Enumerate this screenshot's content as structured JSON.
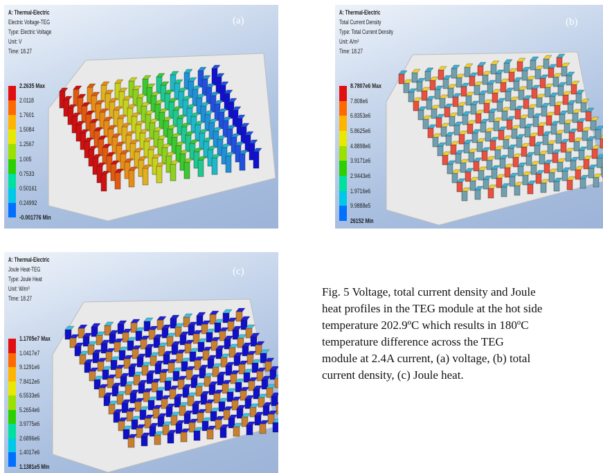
{
  "panels": [
    {
      "id": "a",
      "tag": "(a)",
      "system": "A: Thermal-Electric",
      "result": "Electric Voltage-TEG",
      "type": "Type: Electric Voltage",
      "unit": "Unit: V",
      "time": "Time: 18.27",
      "legend": [
        "2.2635 Max",
        "2.0118",
        "1.7601",
        "1.5084",
        "1.2567",
        "1.005",
        "0.7533",
        "0.50161",
        "0.24992",
        "-0.001776 Min"
      ],
      "legend_colors": [
        "#e01010",
        "#ff6a00",
        "#ffb400",
        "#e8e800",
        "#9ae000",
        "#2cd000",
        "#00e0a0",
        "#00c8e8",
        "#0070ff",
        "#0010e0"
      ]
    },
    {
      "id": "b",
      "tag": "(b)",
      "system": "A: Thermal-Electric",
      "result": "Total Current Density",
      "type": "Type: Total Current Density",
      "unit": "Unit: A/m²",
      "time": "Time: 18.27",
      "legend": [
        "8.7807e6 Max",
        "7.808e6",
        "6.8353e6",
        "5.8625e6",
        "4.8898e6",
        "3.9171e6",
        "2.9443e6",
        "1.9716e6",
        "9.9888e5",
        "26152 Min"
      ],
      "legend_colors": [
        "#e01010",
        "#ff6a00",
        "#ffb400",
        "#e8e800",
        "#9ae000",
        "#2cd000",
        "#00e0a0",
        "#00c8e8",
        "#0070ff",
        "#0010e0"
      ]
    },
    {
      "id": "c",
      "tag": "(c)",
      "system": "A: Thermal-Electric",
      "result": "Joule Heat-TEG",
      "type": "Type: Joule Heat",
      "unit": "Unit: W/m³",
      "time": "Time: 18.27",
      "legend": [
        "1.1705e7 Max",
        "1.0417e7",
        "9.1291e6",
        "7.8412e6",
        "6.5533e6",
        "5.2654e6",
        "3.9775e6",
        "2.6896e6",
        "1.4017e6",
        "1.1381e5 Min"
      ],
      "legend_colors": [
        "#e01010",
        "#ff6a00",
        "#ffb400",
        "#e8e800",
        "#9ae000",
        "#2cd000",
        "#00e0a0",
        "#00c8e8",
        "#0070ff",
        "#0010e0"
      ]
    }
  ],
  "caption": {
    "lines": [
      "Fig. 5  Voltage, total current density and Joule",
      "heat profiles in the TEG module at the hot side",
      "temperature 202.9ºC which results in 180ºC",
      "temperature difference across the TEG",
      "module at 2.4A current, (a) voltage, (b) total",
      "current density, (c) Joule heat."
    ]
  }
}
